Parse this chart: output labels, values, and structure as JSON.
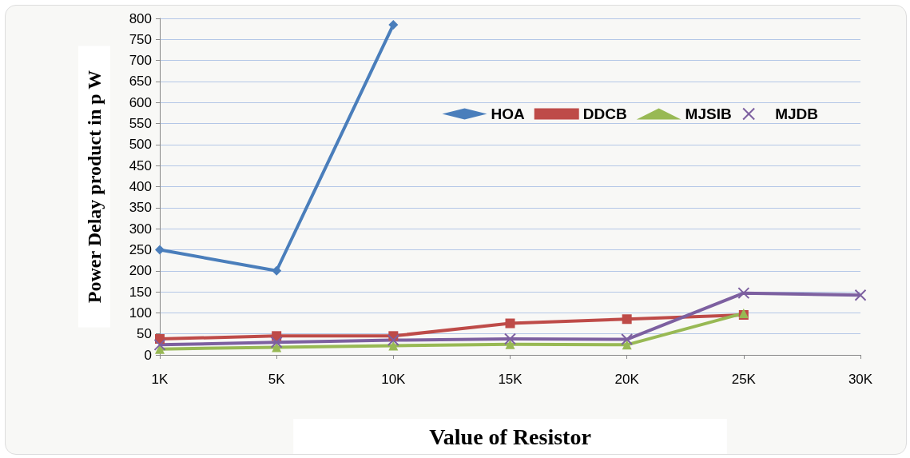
{
  "chart_data": {
    "type": "line",
    "xlabel": "Value of Resistor",
    "ylabel": "Power Delay product in p W",
    "categories": [
      "1K",
      "5K",
      "10K",
      "15K",
      "20K",
      "25K",
      "30K"
    ],
    "series": [
      {
        "name": "HOA",
        "color": "#4a7ebb",
        "marker": "diamond",
        "values": [
          250,
          200,
          785,
          null,
          null,
          null,
          null
        ]
      },
      {
        "name": "DDCB",
        "color": "#be4b48",
        "marker": "square",
        "values": [
          38,
          45,
          45,
          75,
          85,
          95,
          null
        ]
      },
      {
        "name": "MJSIB",
        "color": "#98b954",
        "marker": "triangle",
        "values": [
          14,
          18,
          22,
          25,
          24,
          99,
          null
        ]
      },
      {
        "name": "MJDB",
        "color": "#7d60a0",
        "marker": "cross",
        "values": [
          24,
          30,
          35,
          38,
          37,
          147,
          142
        ]
      }
    ],
    "ylim": [
      0,
      800
    ],
    "yticks": [
      0,
      50,
      100,
      150,
      200,
      250,
      300,
      350,
      400,
      450,
      500,
      550,
      600,
      650,
      700,
      750,
      800
    ],
    "grid": "y",
    "legend": "top right"
  }
}
